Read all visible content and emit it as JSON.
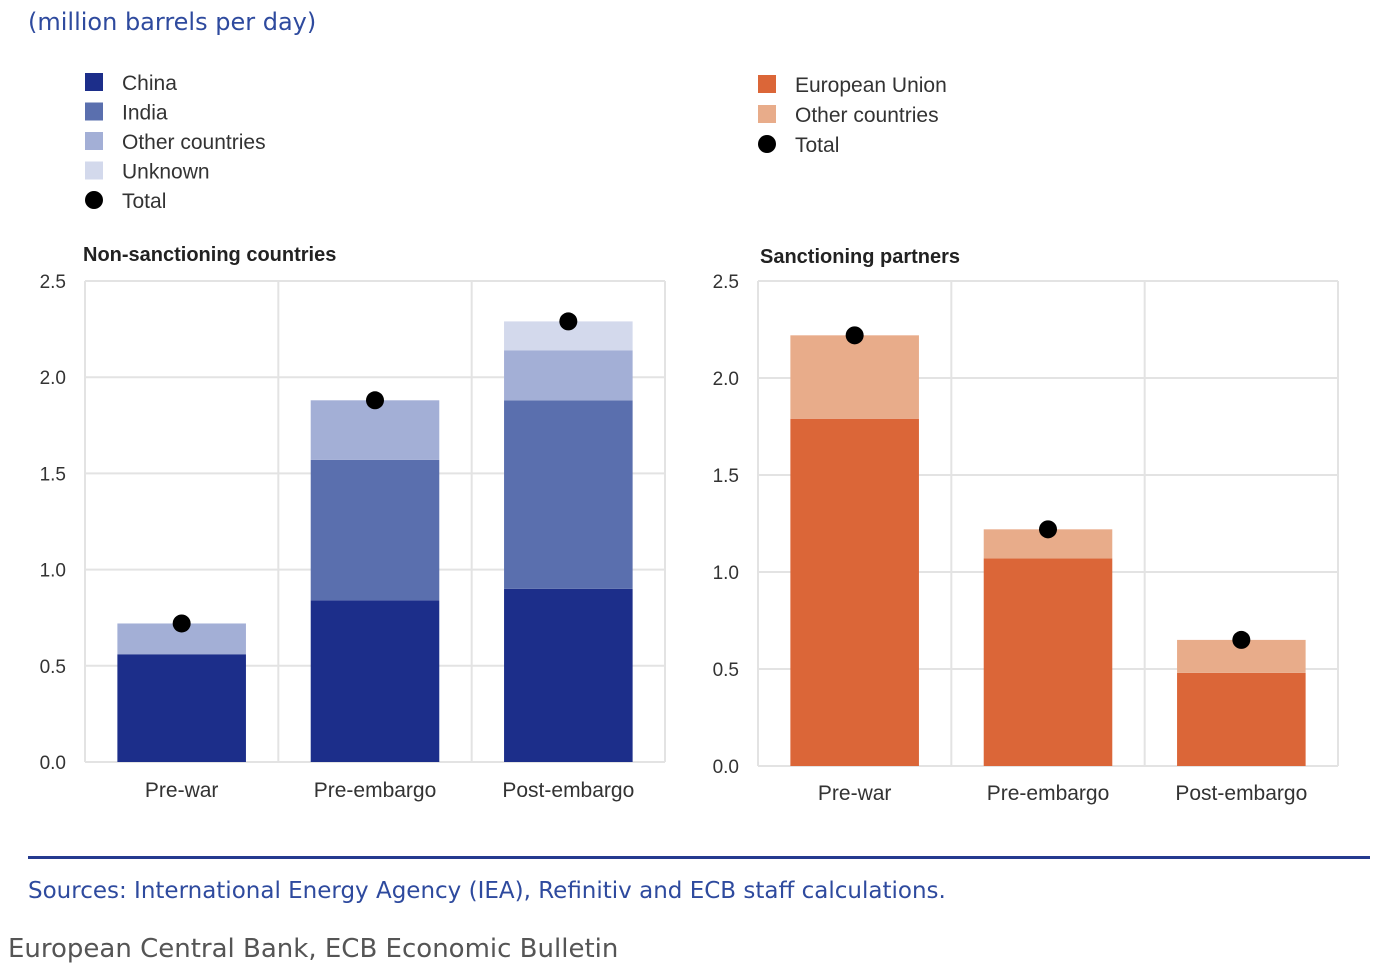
{
  "unit_label": "(million barrels per day)",
  "sources": "Sources: International Energy Agency (IEA), Refinitiv and ECB staff calculations.",
  "credit": "European Central Bank, ECB Economic Bulletin",
  "chart_data": [
    {
      "type": "bar",
      "stacked": true,
      "title": "Non-sanctioning countries",
      "categories": [
        "Pre-war",
        "Pre-embargo",
        "Post-embargo"
      ],
      "ylim": [
        0,
        2.5
      ],
      "yticks": [
        "0.0",
        "0.5",
        "1.0",
        "1.5",
        "2.0",
        "2.5"
      ],
      "grid": true,
      "legend_position": "top-left",
      "series": [
        {
          "name": "China",
          "color": "#1c2e8a",
          "values": [
            0.56,
            0.84,
            0.9
          ]
        },
        {
          "name": "India",
          "color": "#5a6fae",
          "values": [
            0.0,
            0.73,
            0.98
          ]
        },
        {
          "name": "Other countries",
          "color": "#a3afd6",
          "values": [
            0.16,
            0.31,
            0.26
          ]
        },
        {
          "name": "Unknown",
          "color": "#d3d9ec",
          "values": [
            0.0,
            0.0,
            0.15
          ]
        }
      ],
      "total": {
        "name": "Total",
        "color": "#000000",
        "values": [
          0.72,
          1.88,
          2.29
        ]
      }
    },
    {
      "type": "bar",
      "stacked": true,
      "title": "Sanctioning partners",
      "categories": [
        "Pre-war",
        "Pre-embargo",
        "Post-embargo"
      ],
      "ylim": [
        0,
        2.5
      ],
      "yticks": [
        "0.0",
        "0.5",
        "1.0",
        "1.5",
        "2.0",
        "2.5"
      ],
      "grid": true,
      "legend_position": "top-left",
      "series": [
        {
          "name": "European Union",
          "color": "#db6638",
          "values": [
            1.79,
            1.07,
            0.48
          ]
        },
        {
          "name": "Other countries",
          "color": "#e8ac8a",
          "values": [
            0.43,
            0.15,
            0.17
          ]
        }
      ],
      "total": {
        "name": "Total",
        "color": "#000000",
        "values": [
          2.22,
          1.22,
          0.65
        ]
      }
    }
  ]
}
